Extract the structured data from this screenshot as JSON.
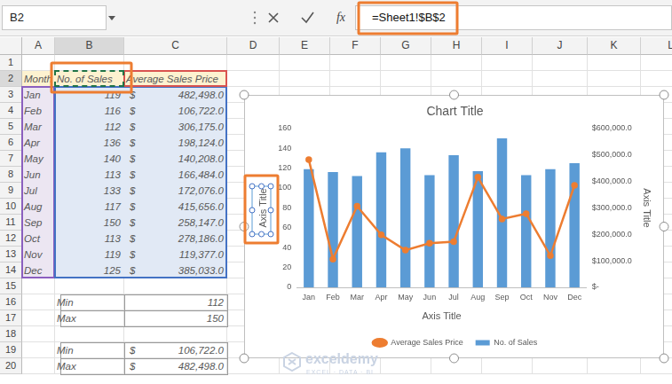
{
  "toolbar": {
    "name_box": "B2",
    "function_label": "fx",
    "formula": "=Sheet1!$B$2"
  },
  "sheet": {
    "columns": [
      "A",
      "B",
      "C",
      "D",
      "E",
      "F",
      "G",
      "H",
      "I",
      "J",
      "K",
      "L"
    ],
    "rows": [
      1,
      2,
      3,
      4,
      5,
      6,
      7,
      8,
      9,
      10,
      11,
      12,
      13,
      14,
      15,
      16,
      17,
      18,
      19,
      20
    ],
    "cells": {
      "A2": "Month",
      "B2": "No. of Sales",
      "C2": "Average Sales Price",
      "A3": "Jan",
      "B3": "119",
      "C3": {
        "prefix": "$",
        "text": "482,498.0"
      },
      "A4": "Feb",
      "B4": "116",
      "C4": {
        "prefix": "$",
        "text": "106,722.0"
      },
      "A5": "Mar",
      "B5": "112",
      "C5": {
        "prefix": "$",
        "text": "306,175.0"
      },
      "A6": "Apr",
      "B6": "136",
      "C6": {
        "prefix": "$",
        "text": "198,124.0"
      },
      "A7": "May",
      "B7": "140",
      "C7": {
        "prefix": "$",
        "text": "140,208.0"
      },
      "A8": "Jun",
      "B8": "113",
      "C8": {
        "prefix": "$",
        "text": "166,484.0"
      },
      "A9": "Jul",
      "B9": "133",
      "C9": {
        "prefix": "$",
        "text": "172,076.0"
      },
      "A10": "Aug",
      "B10": "117",
      "C10": {
        "prefix": "$",
        "text": "415,656.0"
      },
      "A11": "Sep",
      "B11": "150",
      "C11": {
        "prefix": "$",
        "text": "258,147.0"
      },
      "A12": "Oct",
      "B12": "113",
      "C12": {
        "prefix": "$",
        "text": "278,186.0"
      },
      "A13": "Nov",
      "B13": "119",
      "C13": {
        "prefix": "$",
        "text": "119,377.0"
      },
      "A14": "Dec",
      "B14": "125",
      "C14": {
        "prefix": "$",
        "text": "385,033.0"
      },
      "B16": "Min",
      "C16": "112",
      "B17": "Max",
      "C17": "150",
      "B19": "Min",
      "C19": {
        "prefix": "$",
        "text": "106,722.0"
      },
      "B20": "Max",
      "C20": {
        "prefix": "$",
        "text": "482,498.0"
      }
    }
  },
  "watermark": {
    "name": "exceldemy",
    "tagline": "EXCEL · DATA · BI"
  },
  "chart_data": {
    "type": "bar",
    "title": "Chart Title",
    "x_label": "Axis Title",
    "y_label": "Axis Title",
    "y2_label": "Axis Title",
    "categories": [
      "Jan",
      "Feb",
      "Mar",
      "Apr",
      "May",
      "Jun",
      "Jul",
      "Aug",
      "Sep",
      "Oct",
      "Nov",
      "Dec"
    ],
    "series": [
      {
        "name": "No. of Sales",
        "type": "bar",
        "color": "#5b9bd5",
        "values": [
          119,
          116,
          112,
          136,
          140,
          113,
          133,
          117,
          150,
          113,
          119,
          125
        ]
      },
      {
        "name": "Average Sales Price",
        "type": "line",
        "color": "#ed7d31",
        "marker": "circle",
        "line_style": "solid",
        "axis": "y2",
        "values": [
          482498,
          106722,
          306175,
          198124,
          140208,
          166484,
          172076,
          415656,
          258147,
          278186,
          119377,
          385033
        ]
      }
    ],
    "ylim": [
      0,
      160
    ],
    "yticks": [
      0,
      20,
      40,
      60,
      80,
      100,
      120,
      140,
      160
    ],
    "y2lim": [
      0,
      600000
    ],
    "y2ticks": [
      {
        "value": 0,
        "label": "$-"
      },
      {
        "value": 100000,
        "label": "$100,000.0"
      },
      {
        "value": 200000,
        "label": "$200,000.0"
      },
      {
        "value": 300000,
        "label": "$300,000.0"
      },
      {
        "value": 400000,
        "label": "$400,000.0"
      },
      {
        "value": 500000,
        "label": "$500,000.0"
      },
      {
        "value": 600000,
        "label": "$600,000.0"
      }
    ],
    "grid": false,
    "legend": "bottom"
  }
}
